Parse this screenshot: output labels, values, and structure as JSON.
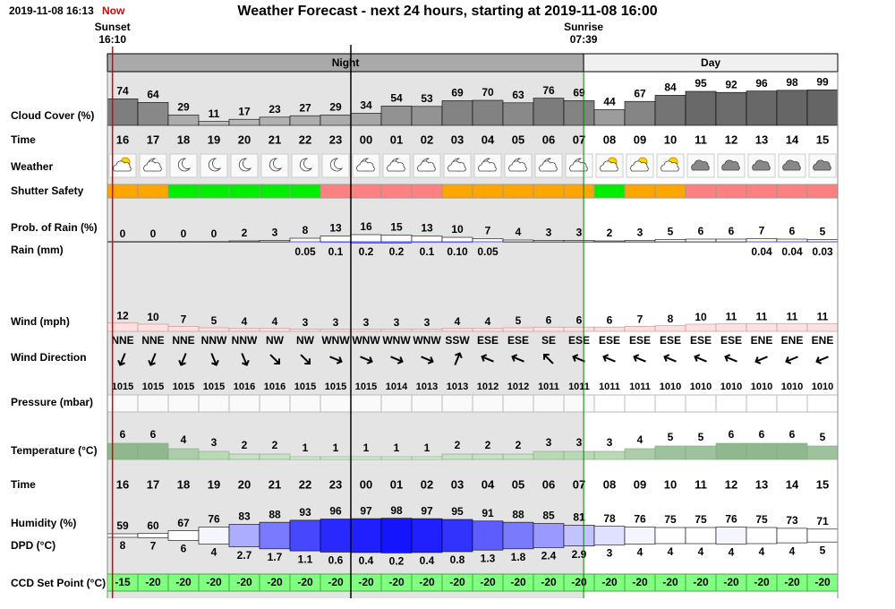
{
  "header": {
    "timestamp": "2019-11-08 16:13",
    "now": "Now",
    "title": "Weather Forecast - next 24 hours, starting at 2019-11-08 16:00"
  },
  "sun": {
    "sunset_label": "Sunset",
    "sunset_time": "16:10",
    "sunrise_label": "Sunrise",
    "sunrise_time": "07:39"
  },
  "periods": {
    "night": "Night",
    "day": "Day"
  },
  "hours": [
    "16",
    "17",
    "18",
    "19",
    "20",
    "21",
    "22",
    "23",
    "00",
    "01",
    "02",
    "03",
    "04",
    "05",
    "06",
    "07",
    "08",
    "09",
    "10",
    "11",
    "12",
    "13",
    "14",
    "15"
  ],
  "rows": {
    "cloud_cover": {
      "label": "Cloud Cover (%)",
      "values": [
        74,
        64,
        29,
        11,
        17,
        23,
        27,
        29,
        34,
        54,
        53,
        69,
        70,
        63,
        76,
        69,
        44,
        67,
        84,
        95,
        92,
        96,
        98,
        99
      ]
    },
    "time_top": {
      "label": "Time"
    },
    "weather": {
      "label": "Weather"
    },
    "shutter_safety": {
      "label": "Shutter Safety",
      "colors": [
        "#ffa500",
        "#ffa500",
        "#00ee00",
        "#00ee00",
        "#00ee00",
        "#00ee00",
        "#00ee00",
        "#ff8080",
        "#ff8080",
        "#ff8080",
        "#ff8080",
        "#ffa500",
        "#ffa500",
        "#ffa500",
        "#ffa500",
        "#ffa500",
        "#00ee00",
        "#ffa500",
        "#ffa500",
        "#ff8080",
        "#ff8080",
        "#ff8080",
        "#ff8080",
        "#ff8080"
      ]
    },
    "prob_rain": {
      "label": "Prob. of Rain (%)",
      "values": [
        0,
        0,
        0,
        0,
        2,
        3,
        8,
        13,
        16,
        15,
        13,
        10,
        7,
        4,
        3,
        3,
        2,
        3,
        5,
        6,
        6,
        7,
        6,
        5
      ]
    },
    "rain": {
      "label": "Rain (mm)",
      "values": [
        0,
        0,
        0,
        0,
        0,
        0,
        0.05,
        0.1,
        0.2,
        0.2,
        0.1,
        0.1,
        0.05,
        0,
        0,
        0,
        0,
        0,
        0,
        0,
        0,
        0.04,
        0.04,
        0.03
      ],
      "value_labels": [
        null,
        null,
        null,
        null,
        null,
        null,
        "0.05",
        "0.1",
        "0.2",
        "0.2",
        "0.1",
        "0.10",
        "0.05",
        null,
        null,
        null,
        null,
        null,
        null,
        null,
        null,
        "0.04",
        "0.04",
        "0.03"
      ]
    },
    "wind": {
      "label": "Wind (mph)",
      "values": [
        12,
        10,
        7,
        5,
        4,
        4,
        3,
        3,
        3,
        3,
        3,
        4,
        4,
        5,
        6,
        6,
        6,
        7,
        8,
        10,
        11,
        11,
        11,
        11
      ]
    },
    "wind_direction": {
      "label": "Wind Direction",
      "values": [
        "NNE",
        "NNE",
        "NNE",
        "NNW",
        "NNW",
        "NW",
        "NW",
        "WNW",
        "WNW",
        "WNW",
        "WNW",
        "SSW",
        "ESE",
        "ESE",
        "SE",
        "ESE",
        "ESE",
        "ESE",
        "ESE",
        "ESE",
        "ESE",
        "ENE",
        "ENE",
        "ENE"
      ]
    },
    "pressure": {
      "label": "Pressure (mbar)",
      "values": [
        1015,
        1015,
        1015,
        1015,
        1016,
        1016,
        1015,
        1015,
        1015,
        1014,
        1013,
        1013,
        1012,
        1012,
        1011,
        1011,
        1011,
        1011,
        1010,
        1010,
        1010,
        1010,
        1010,
        1010
      ]
    },
    "temperature": {
      "label": "Temperature (°C)",
      "values": [
        6,
        6,
        4,
        3,
        2,
        2,
        1,
        1,
        1,
        1,
        1,
        2,
        2,
        2,
        3,
        3,
        3,
        4,
        5,
        5,
        6,
        6,
        6,
        5
      ]
    },
    "time_bottom": {
      "label": "Time"
    },
    "humidity": {
      "label": "Humidity (%)",
      "values": [
        59,
        60,
        67,
        76,
        83,
        88,
        93,
        96,
        97,
        98,
        97,
        95,
        91,
        88,
        85,
        81,
        78,
        76,
        75,
        75,
        76,
        75,
        73,
        71
      ]
    },
    "dpd": {
      "label": "DPD (°C)",
      "values": [
        8,
        7,
        6,
        4,
        2.7,
        1.7,
        1.1,
        0.6,
        0.4,
        0.2,
        0.4,
        0.8,
        1.3,
        1.8,
        2.4,
        2.9,
        3,
        4,
        4,
        4,
        4,
        4,
        4,
        5
      ]
    },
    "ccd": {
      "label": "CCD Set Point (°C)",
      "values": [
        -15,
        -20,
        -20,
        -20,
        -20,
        -20,
        -20,
        -20,
        -20,
        -20,
        -20,
        -20,
        -20,
        -20,
        -20,
        -20,
        -20,
        -20,
        -20,
        -20,
        -20,
        -20,
        -20,
        -20
      ]
    }
  }
}
